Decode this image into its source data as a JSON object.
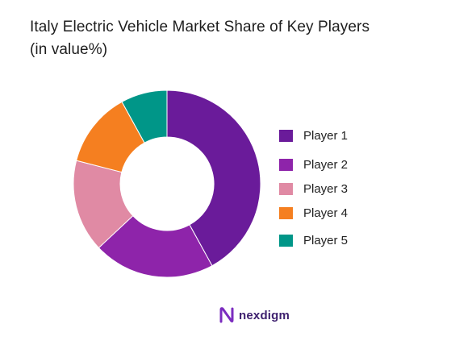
{
  "chart_data": {
    "type": "pie",
    "style": "donut",
    "title": "Italy Electric Vehicle Market Share of Key Players",
    "subtitle": "(in value%)",
    "categories": [
      "Player 1",
      "Player 2",
      "Player 3",
      "Player 4",
      "Player 5"
    ],
    "values": [
      42,
      21,
      16,
      13,
      8
    ],
    "colors": [
      "#6a1b9a",
      "#8e24aa",
      "#e08aa4",
      "#f57f20",
      "#009688"
    ],
    "legend_position": "right",
    "start_angle_deg": 0,
    "direction": "clockwise"
  },
  "brand": {
    "name": "nexdigm",
    "logo_icon": "nexdigm-logo-icon",
    "logo_color": "#7b2cbf"
  }
}
